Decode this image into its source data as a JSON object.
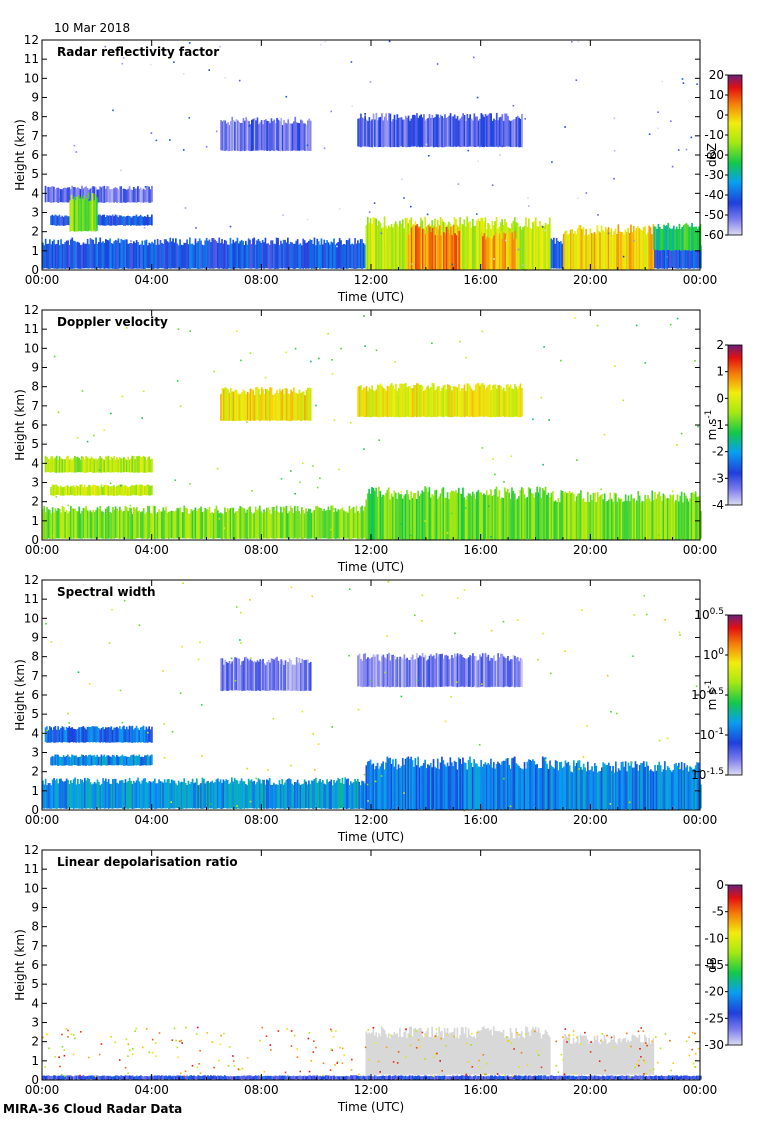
{
  "date_label": "10 Mar 2018",
  "footer_label": "MIRA-36 Cloud Radar Data",
  "chart_data": [
    {
      "type": "heatmap",
      "title": "Radar reflectivity factor",
      "xlabel": "Time (UTC)",
      "ylabel": "Height (km)",
      "x_ticks": [
        "00:00",
        "04:00",
        "08:00",
        "12:00",
        "16:00",
        "20:00",
        "00:00"
      ],
      "x_tick_hours": [
        0,
        4,
        8,
        12,
        16,
        20,
        24
      ],
      "y_ticks": [
        0,
        1,
        2,
        3,
        4,
        5,
        6,
        7,
        8,
        9,
        10,
        11,
        12
      ],
      "xlim_hours": [
        0,
        24
      ],
      "ylim_km": [
        0,
        12
      ],
      "colorbar": {
        "label": "dBZ",
        "ticks": [
          "20",
          "10",
          "0",
          "-10",
          "-20",
          "-30",
          "-40",
          "-50",
          "-60"
        ],
        "range": [
          -60,
          20
        ]
      },
      "features": [
        {
          "name": "boundary-layer",
          "t0": 0.0,
          "t1": 24.0,
          "h0": 0.05,
          "h1": 1.7,
          "level": 0.22
        },
        {
          "name": "low-layer-early-top",
          "t0": 0.1,
          "t1": 4.0,
          "h0": 3.5,
          "h1": 4.4,
          "level": 0.12
        },
        {
          "name": "low-layer-early-mid",
          "t0": 0.3,
          "t1": 4.0,
          "h0": 2.3,
          "h1": 2.9,
          "level": 0.22
        },
        {
          "name": "early-convective-core",
          "t0": 1.0,
          "t1": 2.0,
          "h0": 2.0,
          "h1": 4.1,
          "level": 0.55
        },
        {
          "name": "stratiform-base-1",
          "t0": 11.8,
          "t1": 18.5,
          "h0": 0.0,
          "h1": 2.8,
          "level": 0.62
        },
        {
          "name": "stratiform-core-1",
          "t0": 13.3,
          "t1": 15.2,
          "h0": 0.0,
          "h1": 2.4,
          "level": 0.8
        },
        {
          "name": "stratiform-core-2",
          "t0": 16.0,
          "t1": 17.3,
          "h0": 0.0,
          "h1": 2.1,
          "level": 0.78
        },
        {
          "name": "stratiform-base-2",
          "t0": 19.0,
          "t1": 22.3,
          "h0": 0.0,
          "h1": 2.4,
          "level": 0.72
        },
        {
          "name": "stratiform-base-3",
          "t0": 22.3,
          "t1": 24.0,
          "h0": 1.0,
          "h1": 2.5,
          "level": 0.45
        },
        {
          "name": "cirrus-1",
          "t0": 6.5,
          "t1": 9.8,
          "h0": 6.2,
          "h1": 8.0,
          "level": 0.12
        },
        {
          "name": "cirrus-2",
          "t0": 11.5,
          "t1": 17.5,
          "h0": 6.4,
          "h1": 8.2,
          "level": 0.14
        }
      ],
      "noise_level": 0.1
    },
    {
      "type": "heatmap",
      "title": "Doppler velocity",
      "xlabel": "Time (UTC)",
      "ylabel": "Height (km)",
      "x_ticks": [
        "00:00",
        "04:00",
        "08:00",
        "12:00",
        "16:00",
        "20:00",
        "00:00"
      ],
      "x_tick_hours": [
        0,
        4,
        8,
        12,
        16,
        20,
        24
      ],
      "y_ticks": [
        0,
        1,
        2,
        3,
        4,
        5,
        6,
        7,
        8,
        9,
        10,
        11,
        12
      ],
      "xlim_hours": [
        0,
        24
      ],
      "ylim_km": [
        0,
        12
      ],
      "colorbar": {
        "label": "m s",
        "label_superscript": "-1",
        "ticks": [
          "2",
          "1",
          "0",
          "-1",
          "-2",
          "-3",
          "-4"
        ],
        "range": [
          -4,
          2
        ]
      },
      "features": [
        {
          "name": "boundary-layer",
          "t0": 0.0,
          "t1": 24.0,
          "h0": 0.05,
          "h1": 1.8,
          "level": 0.55
        },
        {
          "name": "low-layer-early-top",
          "t0": 0.1,
          "t1": 4.0,
          "h0": 3.5,
          "h1": 4.4,
          "level": 0.6
        },
        {
          "name": "low-layer-early-mid",
          "t0": 0.3,
          "t1": 4.0,
          "h0": 2.3,
          "h1": 2.9,
          "level": 0.63
        },
        {
          "name": "stratiform-base-1",
          "t0": 11.8,
          "t1": 18.5,
          "h0": 0.0,
          "h1": 2.8,
          "level": 0.52
        },
        {
          "name": "stratiform-base-2",
          "t0": 18.5,
          "t1": 24.0,
          "h0": 0.0,
          "h1": 2.6,
          "level": 0.55
        },
        {
          "name": "cirrus-1",
          "t0": 6.5,
          "t1": 9.8,
          "h0": 6.2,
          "h1": 8.0,
          "level": 0.7
        },
        {
          "name": "cirrus-2",
          "t0": 11.5,
          "t1": 17.5,
          "h0": 6.4,
          "h1": 8.2,
          "level": 0.68
        }
      ],
      "noise_level": 0.55
    },
    {
      "type": "heatmap",
      "title": "Spectral width",
      "xlabel": "Time (UTC)",
      "ylabel": "Height (km)",
      "x_ticks": [
        "00:00",
        "04:00",
        "08:00",
        "12:00",
        "16:00",
        "20:00",
        "00:00"
      ],
      "x_tick_hours": [
        0,
        4,
        8,
        12,
        16,
        20,
        24
      ],
      "y_ticks": [
        0,
        1,
        2,
        3,
        4,
        5,
        6,
        7,
        8,
        9,
        10,
        11,
        12
      ],
      "xlim_hours": [
        0,
        24
      ],
      "ylim_km": [
        0,
        12
      ],
      "colorbar": {
        "label": "m s",
        "label_superscript": "-1",
        "ticks": [
          "10^0.5",
          "10^0",
          "10^-0.5",
          "10^-1",
          "10^-1.5"
        ],
        "range": [
          -1.5,
          0.5
        ],
        "log": true
      },
      "features": [
        {
          "name": "boundary-layer",
          "t0": 0.0,
          "t1": 24.0,
          "h0": 0.05,
          "h1": 1.7,
          "level": 0.32
        },
        {
          "name": "low-layer-early-top",
          "t0": 0.1,
          "t1": 4.0,
          "h0": 3.5,
          "h1": 4.4,
          "level": 0.25
        },
        {
          "name": "low-layer-early-mid",
          "t0": 0.3,
          "t1": 4.0,
          "h0": 2.3,
          "h1": 2.9,
          "level": 0.3
        },
        {
          "name": "stratiform-base-1",
          "t0": 11.8,
          "t1": 18.5,
          "h0": 0.0,
          "h1": 2.8,
          "level": 0.28
        },
        {
          "name": "stratiform-base-2",
          "t0": 18.5,
          "t1": 24.0,
          "h0": 0.0,
          "h1": 2.6,
          "level": 0.3
        },
        {
          "name": "cirrus-1",
          "t0": 6.5,
          "t1": 9.8,
          "h0": 6.2,
          "h1": 8.0,
          "level": 0.1
        },
        {
          "name": "cirrus-2",
          "t0": 11.5,
          "t1": 17.5,
          "h0": 6.4,
          "h1": 8.2,
          "level": 0.1
        }
      ],
      "noise_level": 0.6
    },
    {
      "type": "heatmap",
      "title": "Linear depolarisation ratio",
      "xlabel": "Time (UTC)",
      "ylabel": "Height (km)",
      "x_ticks": [
        "00:00",
        "04:00",
        "08:00",
        "12:00",
        "16:00",
        "20:00",
        "00:00"
      ],
      "x_tick_hours": [
        0,
        4,
        8,
        12,
        16,
        20,
        24
      ],
      "y_ticks": [
        0,
        1,
        2,
        3,
        4,
        5,
        6,
        7,
        8,
        9,
        10,
        11,
        12
      ],
      "xlim_hours": [
        0,
        24
      ],
      "ylim_km": [
        0,
        12
      ],
      "colorbar": {
        "label": "dB",
        "ticks": [
          "0",
          "-5",
          "-10",
          "-15",
          "-20",
          "-25",
          "-30"
        ],
        "range": [
          -30,
          0
        ]
      },
      "features": [
        {
          "name": "near-surface-band",
          "t0": 0.0,
          "t1": 24.0,
          "h0": 0.0,
          "h1": 0.25,
          "level": 0.18
        },
        {
          "name": "masked-precip-1",
          "t0": 11.8,
          "t1": 18.5,
          "h0": 0.25,
          "h1": 2.8,
          "level": -1
        },
        {
          "name": "masked-precip-2",
          "t0": 19.0,
          "t1": 22.3,
          "h0": 0.25,
          "h1": 2.4,
          "level": -1
        }
      ],
      "noise_level": 0.85
    }
  ]
}
